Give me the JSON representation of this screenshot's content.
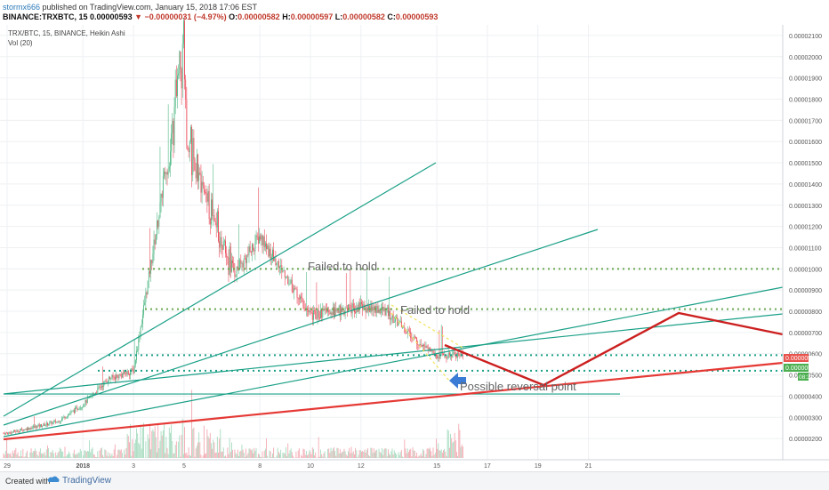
{
  "header": {
    "author": "stormx666",
    "published_text": "published on TradingView.com, January 15, 2018 17:06 EST",
    "symbol": "BINANCE:TRXBTC, 15",
    "last_price": "0.00000593",
    "change": "−0.00000031 (−4.97%)",
    "open_label": "O:",
    "open": "0.00000582",
    "high_label": "H:",
    "high": "0.00000597",
    "low_label": "L:",
    "low": "0.00000582",
    "close_label": "C:",
    "close": "0.00000593"
  },
  "legend": {
    "symbol_line": "TRX/BTC, 15, BINANCE, Heikin Ashi",
    "volume_line": "Vol (20)"
  },
  "chart_data": {
    "type": "candlestick",
    "chart_style": "Heikin Ashi",
    "y_scale": "linear",
    "ylim": [
      1e-06,
      2.15e-05
    ],
    "y_ticks": [
      "0.00000200",
      "0.00000300",
      "0.00000400",
      "0.00000500",
      "0.00000600",
      "0.00000700",
      "0.00000800",
      "0.00000900",
      "0.00001000",
      "0.00001100",
      "0.00001200",
      "0.00001300",
      "0.00001400",
      "0.00001500",
      "0.00001600",
      "0.00001700",
      "0.00001800",
      "0.00001900",
      "0.00002000",
      "0.00002100"
    ],
    "x_ticks": [
      "29",
      "2018",
      "3",
      "5",
      "8",
      "10",
      "12",
      "15",
      "17",
      "19",
      "21"
    ],
    "grid": true,
    "price_labels": [
      {
        "text": "0.00000593",
        "color": "#e8534d"
      },
      {
        "text": "0.00000593",
        "color": "#4caf50"
      },
      {
        "text": "08:31",
        "color": "#4caf50"
      }
    ],
    "price_path_approx": [
      {
        "date": "2017-12-29",
        "price": 2.25e-06
      },
      {
        "date": "2017-12-31",
        "price": 2.8e-06
      },
      {
        "date": "2018-01-01",
        "price": 3.6e-06
      },
      {
        "date": "2018-01-02",
        "price": 4.8e-06
      },
      {
        "date": "2018-01-03",
        "price": 5.2e-06
      },
      {
        "date": "2018-01-04",
        "price": 1.25e-05
      },
      {
        "date": "2018-01-05",
        "price": 2.04e-05
      },
      {
        "date": "2018-01-05",
        "price": 1.6e-05
      },
      {
        "date": "2018-01-06",
        "price": 1.3e-05
      },
      {
        "date": "2018-01-07",
        "price": 9.8e-06
      },
      {
        "date": "2018-01-08",
        "price": 1.15e-05
      },
      {
        "date": "2018-01-09",
        "price": 9.7e-06
      },
      {
        "date": "2018-01-10",
        "price": 7.8e-06
      },
      {
        "date": "2018-01-12",
        "price": 8.2e-06
      },
      {
        "date": "2018-01-13",
        "price": 8e-06
      },
      {
        "date": "2018-01-14",
        "price": 6.8e-06
      },
      {
        "date": "2018-01-15",
        "price": 5.93e-06
      }
    ],
    "drawings": {
      "horizontal_levels": [
        {
          "price": 1e-05,
          "style": "dotted",
          "color": "#6aa84f"
        },
        {
          "price": 8.1e-06,
          "style": "dotted",
          "color": "#6aa84f"
        },
        {
          "price": 5.93e-06,
          "style": "dotted",
          "color": "#1aa087"
        },
        {
          "price": 5.2e-06,
          "style": "dotted",
          "color": "#1aa087"
        },
        {
          "price": 4.1e-06,
          "style": "solid",
          "color": "#1aa087"
        }
      ],
      "projection_path_color": "#cc1f1f",
      "support_trend_color": "#e53935",
      "trendline_color": "#1aa087",
      "channel_color": "#f2e35a",
      "arrow_color": "#3a7bd5"
    },
    "annotations": [
      "Failed to hold",
      "Failed to hold",
      "Possible reversal point"
    ]
  },
  "footer": {
    "created_with": "Created with",
    "brand": "TradingView"
  }
}
